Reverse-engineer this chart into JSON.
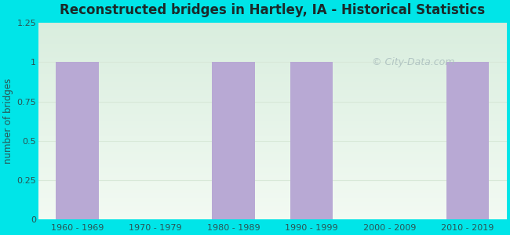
{
  "categories": [
    "1960 - 1969",
    "1970 - 1979",
    "1980 - 1989",
    "1990 - 1999",
    "2000 - 2009",
    "2010 - 2019"
  ],
  "values": [
    1,
    0,
    1,
    1,
    0,
    1
  ],
  "bar_color": "#b8a9d4",
  "title": "Reconstructed bridges in Hartley, IA - Historical Statistics",
  "ylabel": "number of bridges",
  "ylim": [
    0,
    1.25
  ],
  "yticks": [
    0,
    0.25,
    0.5,
    0.75,
    1,
    1.25
  ],
  "ytick_labels": [
    "0",
    "0.25",
    "0.5",
    "0.75",
    "1",
    "1.25"
  ],
  "outer_bg": "#00e5e8",
  "plot_bg_color_topleft": "#d8edd8",
  "plot_bg_color_bottomright": "#f5faf5",
  "title_color": "#1a2a2a",
  "axis_label_color": "#2a5555",
  "tick_color": "#2a5555",
  "grid_color": "#d8e8d8",
  "watermark": "City-Data.com",
  "watermark_color": "#aabdbd",
  "bar_width": 0.55
}
